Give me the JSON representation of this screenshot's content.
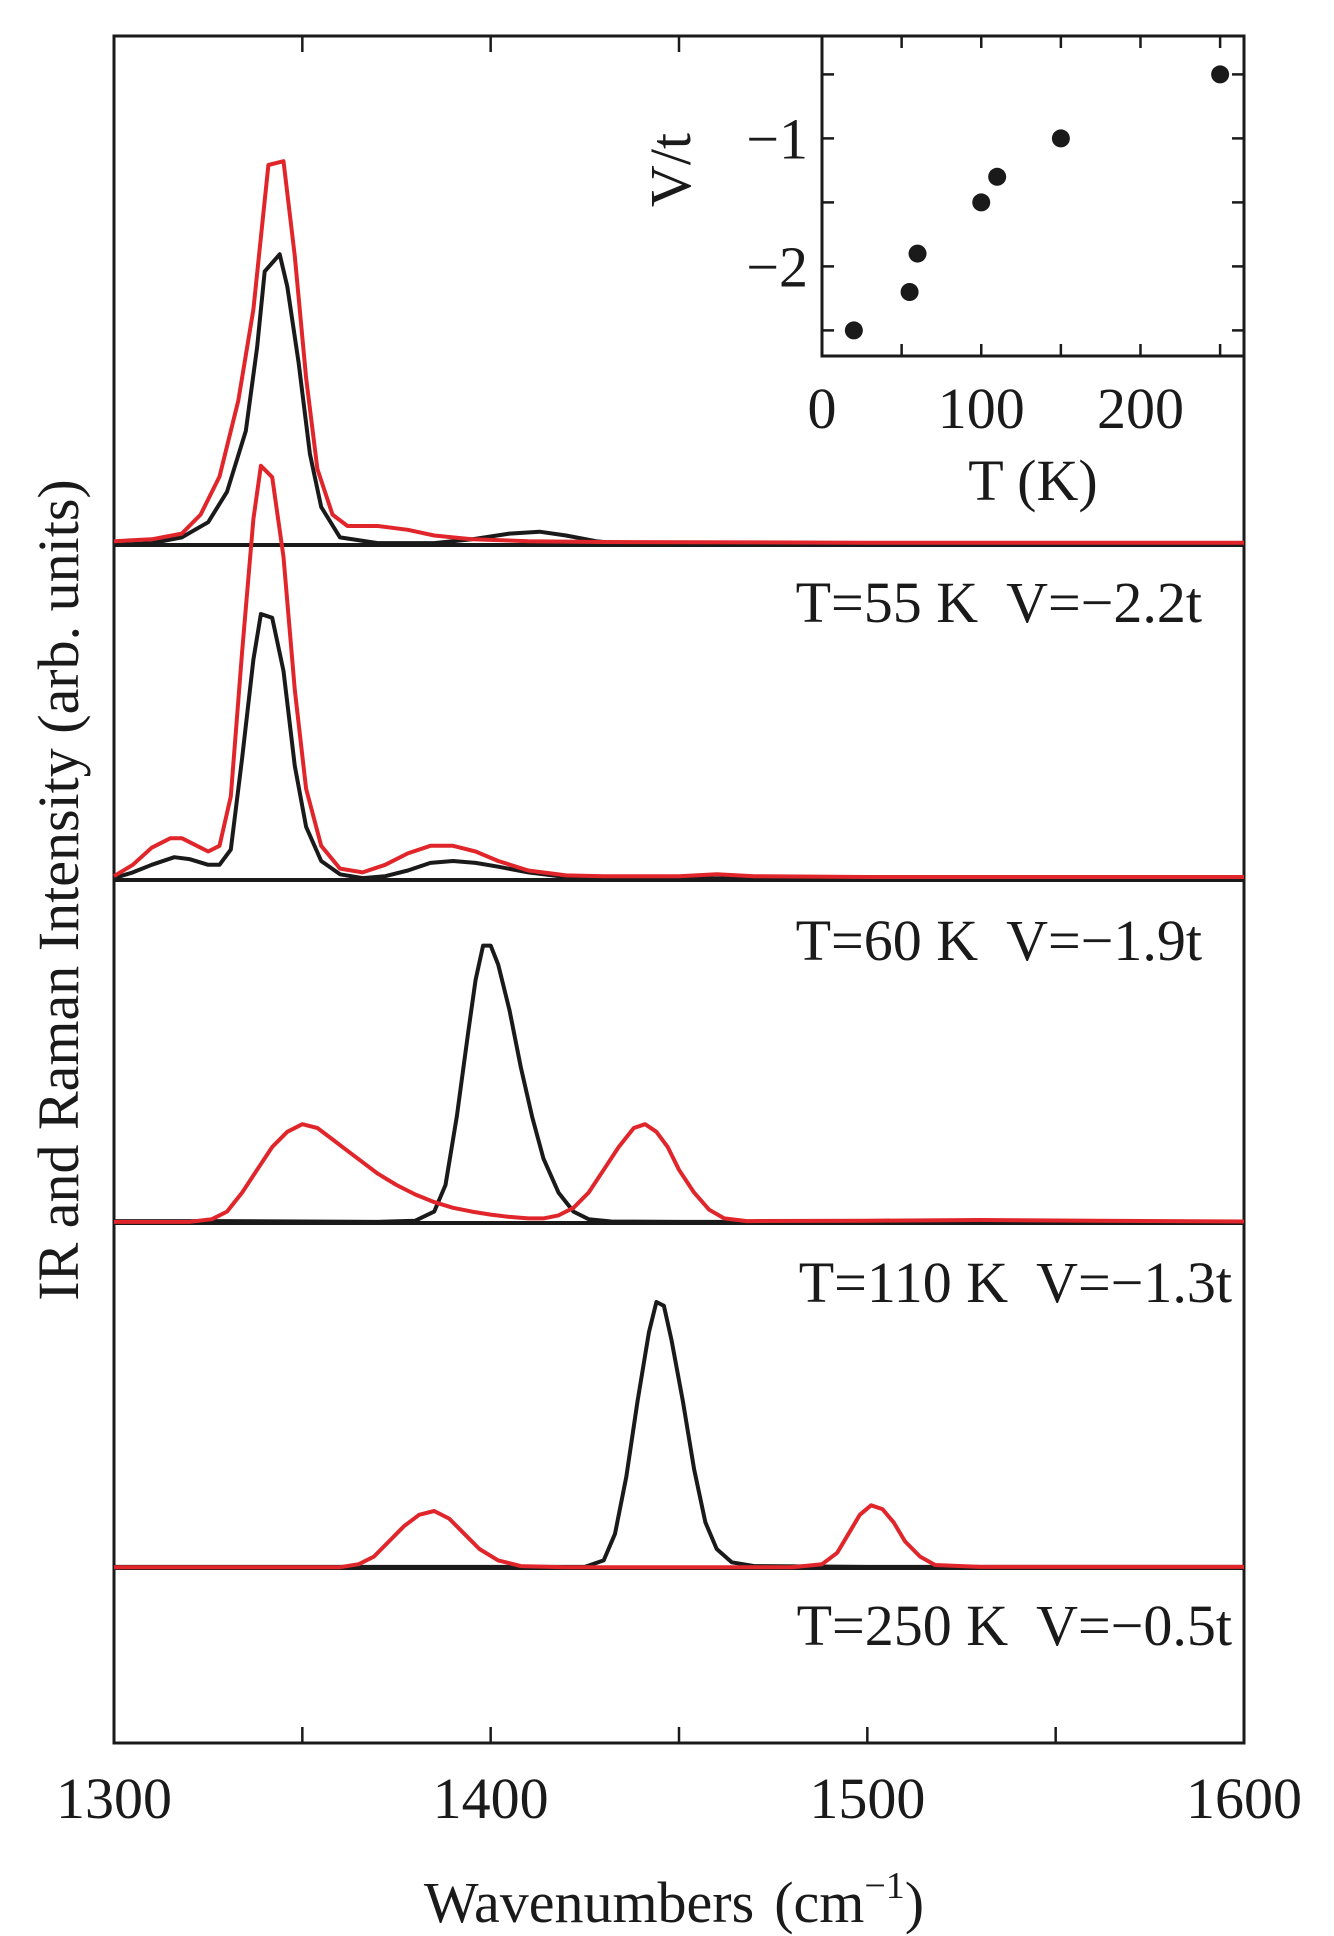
{
  "chart_data": [
    {
      "type": "line",
      "ylabel": "IR and Raman Intensity (arb. units)",
      "xlabel": "Wavenumbers",
      "xlabel_unit": "(cm",
      "xlabel_sup": "−1",
      "xlabel_close": ")",
      "xlim": [
        1300,
        1600
      ],
      "x_ticks": [
        "1300",
        "1400",
        "1500",
        "1600"
      ],
      "series_colors": {
        "IR": "#1a1a1a",
        "Raman": "#e0262b"
      },
      "panels": [
        {
          "label": "T=55 K  V=−2.2t",
          "temperature_K": 55,
          "V_over_t": -2.2,
          "IR": [
            [
              1300,
              0
            ],
            [
              1310,
              0.005
            ],
            [
              1318,
              0.02
            ],
            [
              1325,
              0.06
            ],
            [
              1330,
              0.14
            ],
            [
              1335,
              0.3
            ],
            [
              1338,
              0.52
            ],
            [
              1340,
              0.72
            ],
            [
              1344,
              0.765
            ],
            [
              1346,
              0.68
            ],
            [
              1349,
              0.48
            ],
            [
              1352,
              0.24
            ],
            [
              1355,
              0.1
            ],
            [
              1360,
              0.02
            ],
            [
              1370,
              0.005
            ],
            [
              1385,
              0.005
            ],
            [
              1395,
              0.015
            ],
            [
              1405,
              0.03
            ],
            [
              1413,
              0.035
            ],
            [
              1420,
              0.025
            ],
            [
              1428,
              0.01
            ],
            [
              1435,
              0.003
            ],
            [
              1450,
              0.002
            ],
            [
              1500,
              0.002
            ],
            [
              1600,
              0.002
            ]
          ],
          "Raman": [
            [
              1300,
              0.01
            ],
            [
              1310,
              0.015
            ],
            [
              1318,
              0.03
            ],
            [
              1323,
              0.08
            ],
            [
              1328,
              0.18
            ],
            [
              1333,
              0.38
            ],
            [
              1337,
              0.62
            ],
            [
              1341,
              1.0
            ],
            [
              1345,
              1.01
            ],
            [
              1348,
              0.76
            ],
            [
              1351,
              0.44
            ],
            [
              1354,
              0.2
            ],
            [
              1358,
              0.08
            ],
            [
              1362,
              0.05
            ],
            [
              1370,
              0.05
            ],
            [
              1378,
              0.04
            ],
            [
              1385,
              0.025
            ],
            [
              1395,
              0.015
            ],
            [
              1410,
              0.01
            ],
            [
              1430,
              0.008
            ],
            [
              1500,
              0.006
            ],
            [
              1600,
              0.006
            ]
          ]
        },
        {
          "label": "T=60 K  V=−1.9t",
          "temperature_K": 60,
          "V_over_t": -1.9,
          "IR": [
            [
              1300,
              0.005
            ],
            [
              1305,
              0.02
            ],
            [
              1310,
              0.04
            ],
            [
              1316,
              0.06
            ],
            [
              1320,
              0.055
            ],
            [
              1325,
              0.04
            ],
            [
              1328,
              0.04
            ],
            [
              1331,
              0.08
            ],
            [
              1334,
              0.32
            ],
            [
              1337,
              0.58
            ],
            [
              1339,
              0.7
            ],
            [
              1342,
              0.69
            ],
            [
              1345,
              0.55
            ],
            [
              1348,
              0.3
            ],
            [
              1351,
              0.14
            ],
            [
              1355,
              0.05
            ],
            [
              1360,
              0.015
            ],
            [
              1366,
              0.005
            ],
            [
              1372,
              0.01
            ],
            [
              1378,
              0.025
            ],
            [
              1384,
              0.045
            ],
            [
              1390,
              0.05
            ],
            [
              1396,
              0.045
            ],
            [
              1402,
              0.035
            ],
            [
              1410,
              0.02
            ],
            [
              1420,
              0.008
            ],
            [
              1430,
              0.004
            ],
            [
              1450,
              0.004
            ],
            [
              1600,
              0.004
            ]
          ],
          "Raman": [
            [
              1300,
              0.01
            ],
            [
              1305,
              0.04
            ],
            [
              1310,
              0.085
            ],
            [
              1315,
              0.11
            ],
            [
              1318,
              0.11
            ],
            [
              1322,
              0.09
            ],
            [
              1325,
              0.075
            ],
            [
              1328,
              0.09
            ],
            [
              1331,
              0.22
            ],
            [
              1334,
              0.6
            ],
            [
              1337,
              0.95
            ],
            [
              1339,
              1.09
            ],
            [
              1342,
              1.06
            ],
            [
              1345,
              0.85
            ],
            [
              1348,
              0.5
            ],
            [
              1351,
              0.24
            ],
            [
              1355,
              0.09
            ],
            [
              1360,
              0.03
            ],
            [
              1366,
              0.02
            ],
            [
              1372,
              0.04
            ],
            [
              1378,
              0.07
            ],
            [
              1384,
              0.09
            ],
            [
              1390,
              0.09
            ],
            [
              1396,
              0.075
            ],
            [
              1402,
              0.05
            ],
            [
              1410,
              0.025
            ],
            [
              1420,
              0.012
            ],
            [
              1430,
              0.01
            ],
            [
              1450,
              0.01
            ],
            [
              1460,
              0.015
            ],
            [
              1470,
              0.01
            ],
            [
              1500,
              0.008
            ],
            [
              1600,
              0.008
            ]
          ]
        },
        {
          "label": "T=110 K  V=−1.3t",
          "temperature_K": 110,
          "V_over_t": -1.3,
          "IR": [
            [
              1300,
              0.005
            ],
            [
              1330,
              0.005
            ],
            [
              1370,
              0.003
            ],
            [
              1380,
              0.006
            ],
            [
              1385,
              0.03
            ],
            [
              1388,
              0.1
            ],
            [
              1391,
              0.28
            ],
            [
              1394,
              0.5
            ],
            [
              1396,
              0.64
            ],
            [
              1398,
              0.73
            ],
            [
              1400,
              0.73
            ],
            [
              1402,
              0.68
            ],
            [
              1405,
              0.56
            ],
            [
              1408,
              0.41
            ],
            [
              1411,
              0.28
            ],
            [
              1414,
              0.17
            ],
            [
              1418,
              0.08
            ],
            [
              1422,
              0.03
            ],
            [
              1426,
              0.01
            ],
            [
              1432,
              0.004
            ],
            [
              1450,
              0.003
            ],
            [
              1600,
              0.003
            ]
          ],
          "Raman": [
            [
              1300,
              0.003
            ],
            [
              1320,
              0.003
            ],
            [
              1326,
              0.01
            ],
            [
              1330,
              0.03
            ],
            [
              1334,
              0.08
            ],
            [
              1338,
              0.14
            ],
            [
              1342,
              0.2
            ],
            [
              1346,
              0.24
            ],
            [
              1350,
              0.26
            ],
            [
              1354,
              0.25
            ],
            [
              1358,
              0.22
            ],
            [
              1362,
              0.19
            ],
            [
              1366,
              0.16
            ],
            [
              1370,
              0.13
            ],
            [
              1375,
              0.1
            ],
            [
              1380,
              0.075
            ],
            [
              1385,
              0.055
            ],
            [
              1390,
              0.04
            ],
            [
              1395,
              0.03
            ],
            [
              1400,
              0.022
            ],
            [
              1405,
              0.016
            ],
            [
              1410,
              0.012
            ],
            [
              1414,
              0.012
            ],
            [
              1418,
              0.02
            ],
            [
              1422,
              0.04
            ],
            [
              1426,
              0.08
            ],
            [
              1430,
              0.14
            ],
            [
              1434,
              0.2
            ],
            [
              1438,
              0.25
            ],
            [
              1441,
              0.26
            ],
            [
              1444,
              0.24
            ],
            [
              1447,
              0.2
            ],
            [
              1450,
              0.14
            ],
            [
              1454,
              0.08
            ],
            [
              1458,
              0.035
            ],
            [
              1462,
              0.012
            ],
            [
              1468,
              0.005
            ],
            [
              1500,
              0.006
            ],
            [
              1530,
              0.008
            ],
            [
              1560,
              0.006
            ],
            [
              1600,
              0.004
            ]
          ]
        },
        {
          "label": "T=250 K  V=−0.5t",
          "temperature_K": 250,
          "V_over_t": -0.5,
          "IR": [
            [
              1300,
              0.003
            ],
            [
              1400,
              0.003
            ],
            [
              1425,
              0.003
            ],
            [
              1430,
              0.02
            ],
            [
              1433,
              0.09
            ],
            [
              1436,
              0.24
            ],
            [
              1439,
              0.44
            ],
            [
              1442,
              0.62
            ],
            [
              1444,
              0.7
            ],
            [
              1446,
              0.69
            ],
            [
              1448,
              0.6
            ],
            [
              1451,
              0.44
            ],
            [
              1454,
              0.26
            ],
            [
              1457,
              0.12
            ],
            [
              1460,
              0.05
            ],
            [
              1464,
              0.015
            ],
            [
              1470,
              0.005
            ],
            [
              1500,
              0.003
            ],
            [
              1600,
              0.003
            ]
          ],
          "Raman": [
            [
              1300,
              0.002
            ],
            [
              1360,
              0.002
            ],
            [
              1365,
              0.01
            ],
            [
              1369,
              0.03
            ],
            [
              1373,
              0.07
            ],
            [
              1377,
              0.11
            ],
            [
              1381,
              0.14
            ],
            [
              1385,
              0.15
            ],
            [
              1389,
              0.13
            ],
            [
              1393,
              0.09
            ],
            [
              1397,
              0.05
            ],
            [
              1402,
              0.02
            ],
            [
              1408,
              0.005
            ],
            [
              1420,
              0.002
            ],
            [
              1480,
              0.002
            ],
            [
              1488,
              0.01
            ],
            [
              1492,
              0.04
            ],
            [
              1495,
              0.09
            ],
            [
              1498,
              0.14
            ],
            [
              1501,
              0.165
            ],
            [
              1504,
              0.155
            ],
            [
              1507,
              0.12
            ],
            [
              1510,
              0.07
            ],
            [
              1514,
              0.03
            ],
            [
              1518,
              0.008
            ],
            [
              1530,
              0.003
            ],
            [
              1600,
              0.003
            ]
          ]
        }
      ]
    },
    {
      "type": "scatter",
      "xlabel": "T (K)",
      "ylabel": "V/t",
      "xlim": [
        0,
        265
      ],
      "ylim": [
        -2.7,
        -0.2
      ],
      "x_ticks": [
        "0",
        "100",
        "200"
      ],
      "y_ticks": [
        "−1",
        "−2"
      ],
      "points": [
        {
          "x": 20,
          "y": -2.5
        },
        {
          "x": 55,
          "y": -2.2
        },
        {
          "x": 60,
          "y": -1.9
        },
        {
          "x": 100,
          "y": -1.5
        },
        {
          "x": 110,
          "y": -1.3
        },
        {
          "x": 150,
          "y": -1.0
        },
        {
          "x": 250,
          "y": -0.5
        }
      ]
    }
  ]
}
